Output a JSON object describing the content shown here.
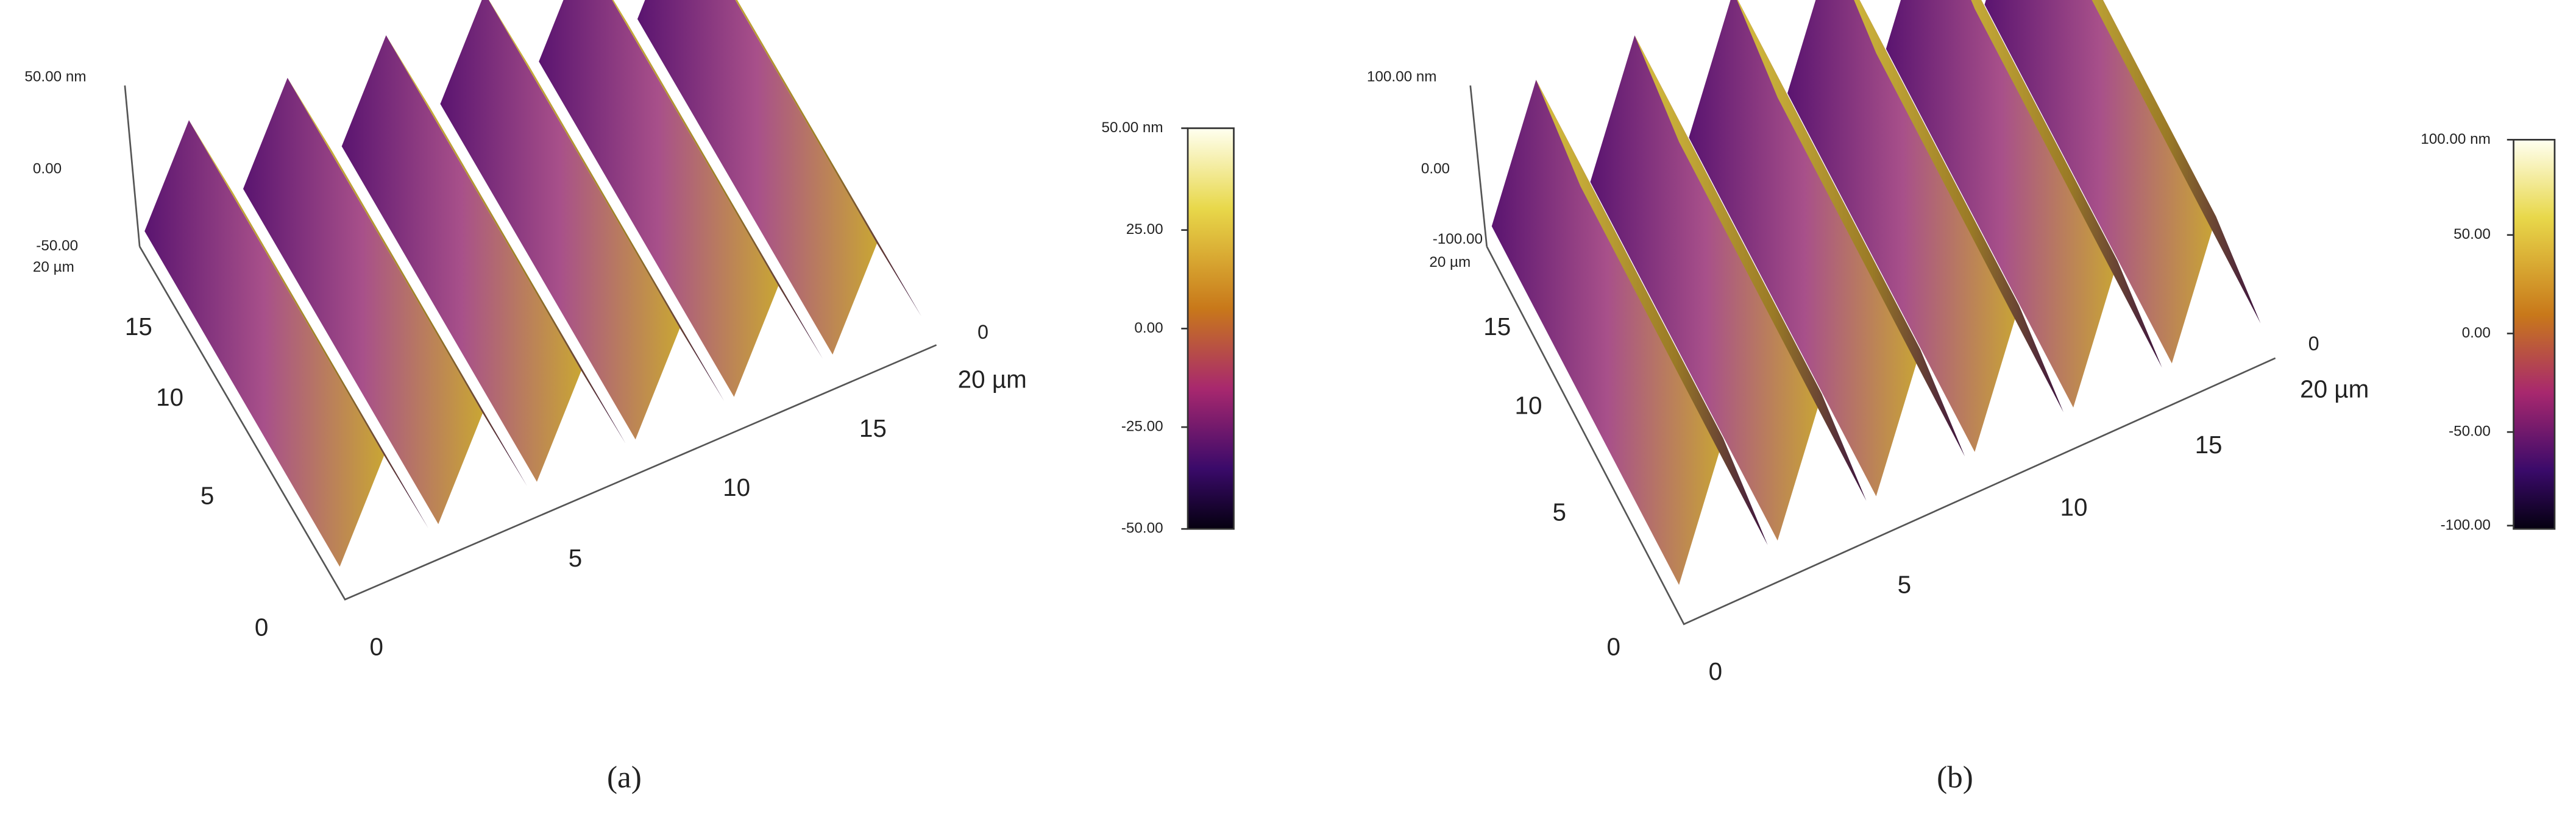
{
  "panels": [
    {
      "label": "(a)",
      "z_ticks": [
        "50.00 nm",
        "0.00",
        "-50.00"
      ],
      "y_ticks": [
        "20 µm",
        "15",
        "10",
        "5",
        "0"
      ],
      "x_ticks": [
        "0",
        "5",
        "10",
        "15",
        "20 µm"
      ],
      "far_tick": "0",
      "colorbar_ticks": [
        "50.00 nm",
        "25.00",
        "0.00",
        "-25.00",
        "-50.00"
      ]
    },
    {
      "label": "(b)",
      "z_ticks": [
        "100.00 nm",
        "0.00",
        "-100.00"
      ],
      "y_ticks": [
        "20 µm",
        "15",
        "10",
        "5",
        "0"
      ],
      "x_ticks": [
        "0",
        "5",
        "10",
        "15",
        "20 µm"
      ],
      "far_tick": "0",
      "colorbar_ticks": [
        "100.00 nm",
        "50.00",
        "0.00",
        "-50.00",
        "-100.00"
      ]
    }
  ]
}
